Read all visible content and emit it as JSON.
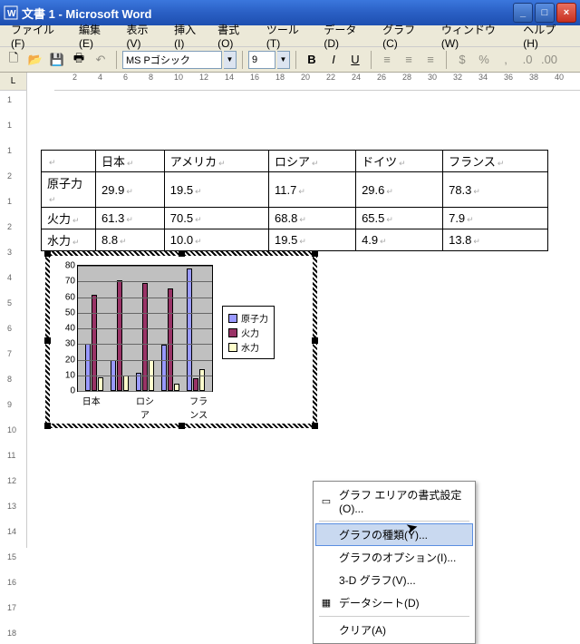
{
  "window": {
    "title": "文書 1 - Microsoft Word"
  },
  "menu": {
    "file": "ファイル(F)",
    "edit": "編集(E)",
    "view": "表示(V)",
    "insert": "挿入(I)",
    "format": "書式(O)",
    "tools": "ツール(T)",
    "data": "データ(D)",
    "graph": "グラフ(C)",
    "window": "ウィンドウ(W)",
    "help": "ヘルプ(H)"
  },
  "toolbar": {
    "font": "MS Pゴシック",
    "size": "9"
  },
  "ruler_h": [
    "2",
    "4",
    "6",
    "8",
    "10",
    "12",
    "14",
    "16",
    "18",
    "20",
    "22",
    "24",
    "26",
    "28",
    "30",
    "32",
    "34",
    "36",
    "38",
    "40"
  ],
  "ruler_v": [
    "1",
    "1",
    "1",
    "2",
    "1",
    "2",
    "3",
    "4",
    "5",
    "6",
    "7",
    "8",
    "9",
    "10",
    "11",
    "12",
    "13",
    "14",
    "15",
    "16",
    "17",
    "18"
  ],
  "table": {
    "headers": [
      "",
      "日本",
      "アメリカ",
      "ロシア",
      "ドイツ",
      "フランス"
    ],
    "rows": [
      {
        "label": "原子力",
        "values": [
          "29.9",
          "19.5",
          "11.7",
          "29.6",
          "78.3"
        ]
      },
      {
        "label": "火力",
        "values": [
          "61.3",
          "70.5",
          "68.8",
          "65.5",
          "7.9"
        ]
      },
      {
        "label": "水力",
        "values": [
          "8.8",
          "10.0",
          "19.5",
          "4.9",
          "13.8"
        ]
      }
    ]
  },
  "chart": {
    "type": "bar",
    "ymax": 80,
    "ytick_step": 10,
    "series_labels": [
      "原子力",
      "火力",
      "水力"
    ],
    "series_colors": [
      "#9999ff",
      "#993366",
      "#ffffcc"
    ],
    "categories": [
      "日本",
      "アメリカ",
      "ロシア",
      "ドイツ",
      "フランス"
    ],
    "x_shown": [
      "日本",
      "ロシア",
      "フランス"
    ],
    "data": [
      [
        29.9,
        61.3,
        8.8
      ],
      [
        19.5,
        70.5,
        10.0
      ],
      [
        11.7,
        68.8,
        19.5
      ],
      [
        29.6,
        65.5,
        4.9
      ],
      [
        78.3,
        7.9,
        13.8
      ]
    ],
    "plot_bg": "#c0c0c0",
    "grid_color": "#666666"
  },
  "context_menu": {
    "items": [
      {
        "label": "グラフ エリアの書式設定(O)...",
        "icon": "▭"
      },
      {
        "sep": true
      },
      {
        "label": "グラフの種類(Y)...",
        "hover": true
      },
      {
        "label": "グラフのオプション(I)..."
      },
      {
        "label": "3-D グラフ(V)..."
      },
      {
        "label": "データシート(D)",
        "icon": "▦"
      },
      {
        "sep": true
      },
      {
        "label": "クリア(A)"
      }
    ]
  }
}
